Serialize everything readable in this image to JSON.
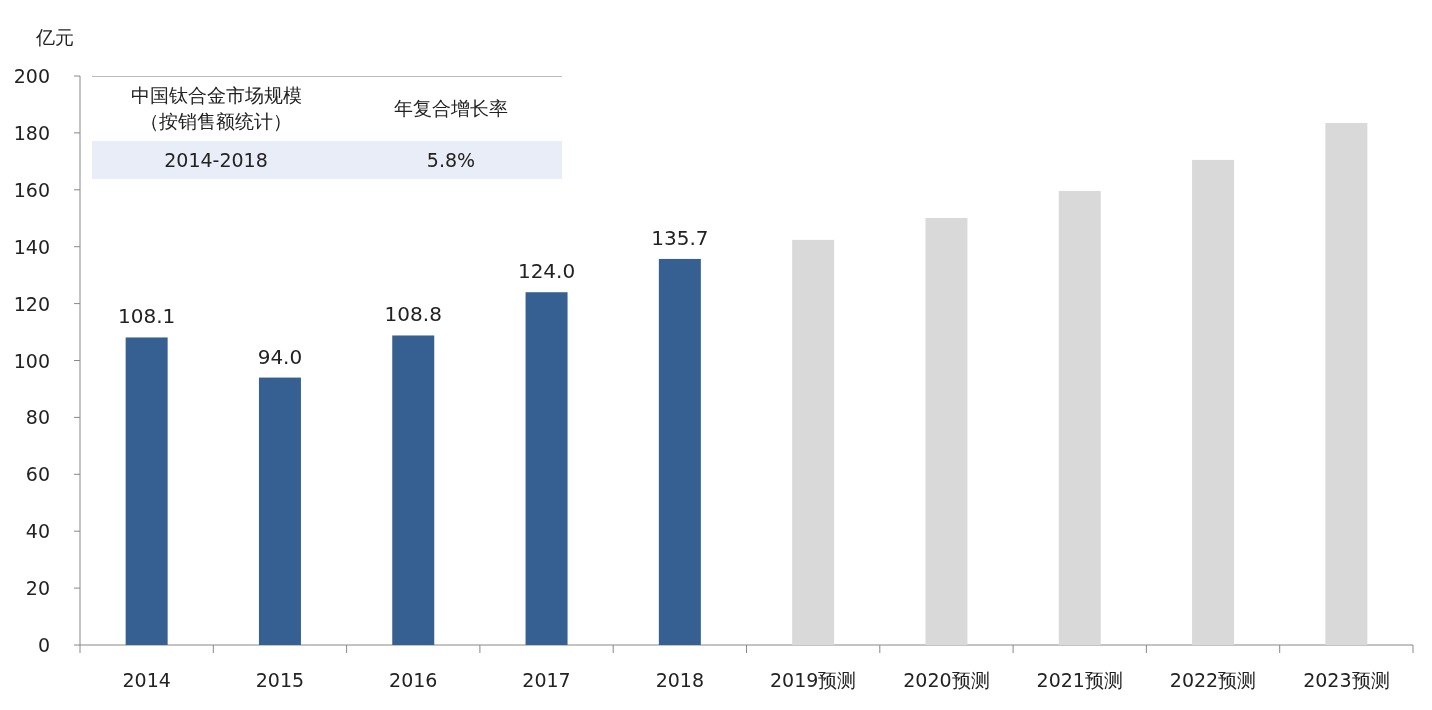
{
  "chart_data": {
    "type": "bar",
    "ylabel": "亿元",
    "categories": [
      "2014",
      "2015",
      "2016",
      "2017",
      "2018",
      "2019预测",
      "2020预测",
      "2021预测",
      "2022预测",
      "2023预测"
    ],
    "values": [
      108.1,
      94.0,
      108.8,
      124.0,
      135.7,
      142.4,
      150.1,
      159.6,
      170.5,
      183.5
    ],
    "colors": [
      "#366092",
      "#366092",
      "#366092",
      "#366092",
      "#366092",
      "#d9d9d9",
      "#d9d9d9",
      "#d9d9d9",
      "#d9d9d9",
      "#d9d9d9"
    ],
    "value_labels": [
      "108.1",
      "94.0",
      "108.8",
      "124.0",
      "135.7",
      null,
      null,
      null,
      null,
      null
    ],
    "ylim": [
      0,
      200
    ],
    "yticks": [
      0,
      20,
      40,
      60,
      80,
      100,
      120,
      140,
      160,
      180,
      200
    ],
    "annotations": [
      "中国钛合金市场规模（按销售额统计）",
      "年复合增长率",
      "2014-2018",
      "5.8%"
    ]
  }
}
